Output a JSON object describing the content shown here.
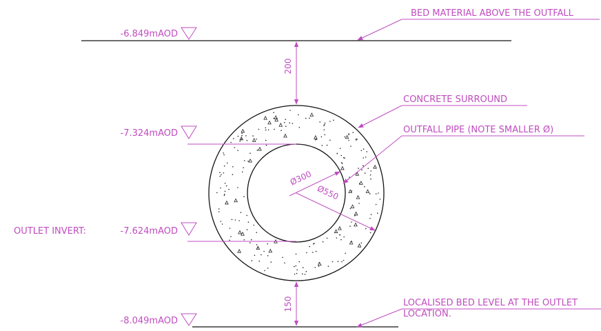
{
  "levels": {
    "bed_top": "-6.849mAOD",
    "pipe_crown": "-7.324mAOD",
    "outlet_invert_prefix": "OUTLET INVERT:",
    "outlet_invert": "-7.624mAOD",
    "bed_local": "-8.049mAOD"
  },
  "callouts": {
    "bed_material": "BED MATERIAL ABOVE THE OUTFALL",
    "concrete": "CONCRETE SURROUND",
    "pipe": "OUTFALL PIPE (NOTE SMALLER Ø)",
    "localised_line1": "LOCALISED BED LEVEL AT THE OUTLET",
    "localised_line2": "LOCATION."
  },
  "dimensions": {
    "cover_top": "200",
    "cover_bottom": "150",
    "inner_diameter": "Ø300",
    "outer_diameter": "Ø550"
  },
  "colors": {
    "annotation": "#c04cc0",
    "linework": "#111111"
  }
}
